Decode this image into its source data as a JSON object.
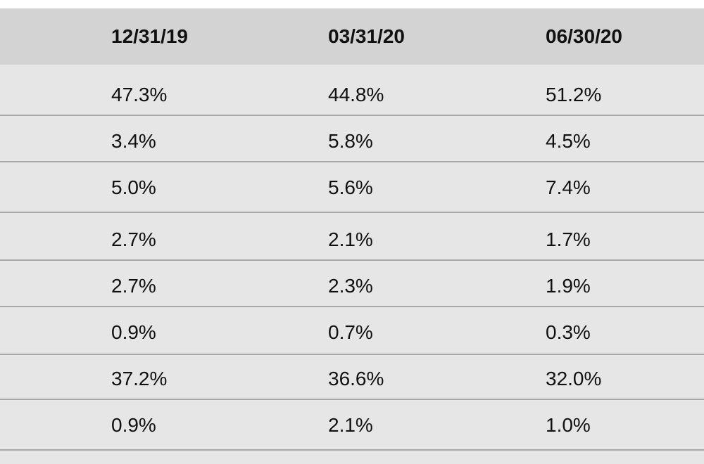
{
  "table": {
    "headers": [
      "12/31/19",
      "03/31/20",
      "06/30/20"
    ],
    "rows": [
      [
        "47.3%",
        "44.8%",
        "51.2%"
      ],
      [
        "3.4%",
        "5.8%",
        "4.5%"
      ],
      [
        "5.0%",
        "5.6%",
        "7.4%"
      ],
      [
        "2.7%",
        "2.1%",
        "1.7%"
      ],
      [
        "2.7%",
        "2.3%",
        "1.9%"
      ],
      [
        "0.9%",
        "0.7%",
        "0.3%"
      ],
      [
        "37.2%",
        "36.6%",
        "32.0%"
      ],
      [
        "0.9%",
        "2.1%",
        "1.0%"
      ]
    ]
  },
  "colors": {
    "header_bg": "#d3d3d3",
    "body_bg": "#e6e6e6",
    "divider": "#a8a8a8",
    "text": "#111111"
  }
}
